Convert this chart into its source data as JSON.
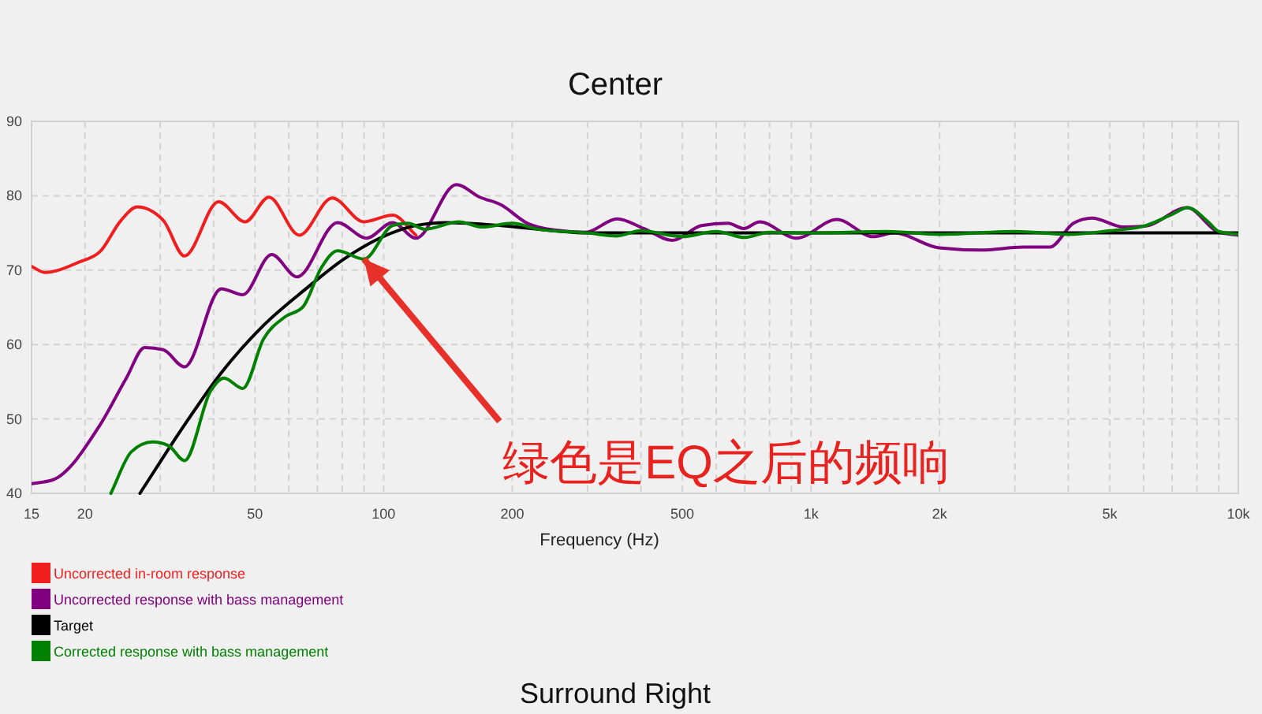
{
  "chart_data": {
    "type": "line",
    "title": "Center",
    "xlabel": "Frequency (Hz)",
    "log": "x",
    "xlim": [
      15,
      10000
    ],
    "ylim": [
      40,
      90
    ],
    "xticks": [
      15,
      20,
      {
        "value": 30,
        "label": null
      },
      {
        "value": 40,
        "label": null
      },
      50,
      {
        "value": 60,
        "label": null
      },
      {
        "value": 70,
        "label": null
      },
      {
        "value": 80,
        "label": null
      },
      {
        "value": 90,
        "label": null
      },
      100,
      200,
      {
        "value": 300,
        "label": null
      },
      {
        "value": 400,
        "label": null
      },
      500,
      {
        "value": 600,
        "label": null
      },
      {
        "value": 700,
        "label": null
      },
      {
        "value": 800,
        "label": null
      },
      {
        "value": 900,
        "label": null
      },
      {
        "value": 1000,
        "label": "1k"
      },
      {
        "value": 2000,
        "label": "2k"
      },
      {
        "value": 3000,
        "label": null
      },
      {
        "value": 4000,
        "label": null
      },
      {
        "value": 5000,
        "label": "5k"
      },
      {
        "value": 6000,
        "label": null
      },
      {
        "value": 7000,
        "label": null
      },
      {
        "value": 8000,
        "label": null
      },
      {
        "value": 9000,
        "label": null
      },
      {
        "value": 10000,
        "label": "10k"
      }
    ],
    "yticks": [
      40,
      50,
      60,
      70,
      80,
      90
    ],
    "grid": true,
    "legend": "bottom left",
    "series": [
      {
        "name": "Uncorrected in-room response",
        "color": "#f01e1e",
        "x": [
          15,
          16.1,
          19.4,
          21.7,
          24.3,
          26.5,
          30.5,
          34.2,
          41.1,
          47.4,
          53.9,
          63.5,
          75.8,
          89.9,
          105,
          119
        ],
        "values": [
          70.5,
          69.7,
          71.1,
          72.5,
          76.7,
          78.5,
          76.7,
          71.9,
          79.2,
          76.5,
          79.8,
          74.7,
          79.7,
          76.5,
          77.4,
          74.7
        ]
      },
      {
        "name": "Uncorrected response with bass management",
        "color": "#800080",
        "x": [
          15,
          16.8,
          21.7,
          25,
          27.6,
          30.5,
          34.2,
          41.7,
          46.8,
          54.7,
          62.7,
          78,
          91.2,
          105,
          119,
          148,
          168,
          188,
          217,
          250,
          297,
          352,
          406,
          474,
          554,
          639,
          696,
          758,
          925,
          1150,
          1397,
          1565,
          1993,
          2500,
          3141,
          3621,
          4113,
          4545,
          5390,
          6040,
          7582,
          8990,
          10000
        ],
        "values": [
          41.3,
          41.8,
          49.2,
          55.5,
          59.6,
          59.3,
          57.0,
          67.5,
          66.7,
          72.1,
          69.1,
          76.4,
          74.3,
          76.4,
          74.3,
          81.5,
          79.8,
          78.8,
          76.3,
          75.4,
          75.1,
          76.9,
          75.6,
          74.0,
          76.0,
          76.3,
          75.6,
          76.5,
          74.3,
          76.8,
          74.5,
          75.0,
          73.0,
          72.7,
          73.1,
          73.1,
          76.3,
          77.0,
          75.8,
          75.9,
          78.4,
          75.1,
          74.7
        ]
      },
      {
        "name": "Target",
        "color": "#000000",
        "x": [
          26.9,
          34.2,
          41.7,
          52.4,
          65.8,
          80.3,
          97.9,
          119,
          140,
          188,
          250,
          300,
          10000
        ],
        "values": [
          40,
          49.2,
          56.2,
          62.6,
          67.5,
          71.4,
          74.3,
          76.0,
          76.4,
          76.0,
          75.3,
          75,
          75
        ]
      },
      {
        "name": "Corrected response with bass management",
        "color": "#008000",
        "x": [
          23,
          25.7,
          28.8,
          31.4,
          34.2,
          39.4,
          42.3,
          46.8,
          52.4,
          58.7,
          64.8,
          71.6,
          78,
          89.9,
          105,
          114,
          125,
          150,
          170,
          200,
          230,
          300,
          350,
          400,
          500,
          600,
          700,
          800,
          1000,
          1500,
          2000,
          3000,
          4000,
          5000,
          6000,
          7000,
          7600,
          8500,
          9000,
          10000
        ],
        "values": [
          40,
          45.6,
          46.9,
          46.4,
          44.4,
          53.8,
          55.5,
          54.1,
          60.8,
          63.7,
          65.1,
          70.4,
          72.6,
          71.5,
          76.0,
          76.3,
          75.5,
          76.5,
          75.8,
          76.3,
          75.5,
          75.0,
          74.6,
          75.3,
          74.5,
          75.2,
          74.4,
          75.1,
          75.0,
          75.2,
          74.8,
          75.2,
          74.8,
          75.3,
          75.9,
          77.5,
          78.4,
          76.5,
          75.2,
          74.8
        ]
      }
    ],
    "annotations": [
      {
        "text": "绿色是EQ之后的频响",
        "x": 89.9,
        "y": 71.5
      },
      "Surround Right"
    ]
  }
}
